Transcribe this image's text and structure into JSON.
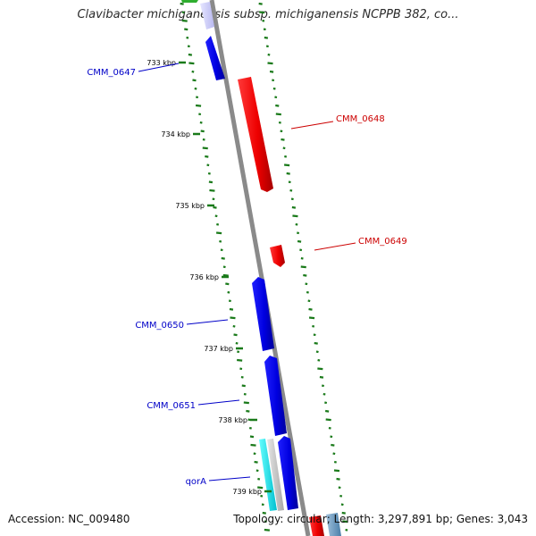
{
  "title": "Clavibacter michiganensis subsp. michiganensis NCPPB 382, co...",
  "footer": {
    "accession_label": "Accession:",
    "accession": "NC_009480",
    "topology_label": "Topology:",
    "topology": "circular",
    "length_label": "Length:",
    "length": "3,297,891 bp",
    "genes_label": "Genes:",
    "genes": "3,043"
  },
  "colors": {
    "backbone": "#8c8c8c",
    "forward_cds": "#0000e0",
    "reverse_cds": "#ee0000",
    "rna": "#00dddd",
    "gc_ticks": "#1a7a1a",
    "forward_label": "#0000c8",
    "reverse_label": "#cc0000"
  },
  "ruler": [
    {
      "label": "733 kbp"
    },
    {
      "label": "734 kbp"
    },
    {
      "label": "735 kbp"
    },
    {
      "label": "736 kbp"
    },
    {
      "label": "737 kbp"
    },
    {
      "label": "738 kbp"
    },
    {
      "label": "739 kbp"
    }
  ],
  "genes": [
    {
      "label": "CMM_0647",
      "strand": "forward"
    },
    {
      "label": "CMM_0648",
      "strand": "reverse"
    },
    {
      "label": "CMM_0649",
      "strand": "reverse"
    },
    {
      "label": "CMM_0650",
      "strand": "forward"
    },
    {
      "label": "CMM_0651",
      "strand": "forward"
    },
    {
      "label": "qorA",
      "strand": "forward"
    }
  ]
}
